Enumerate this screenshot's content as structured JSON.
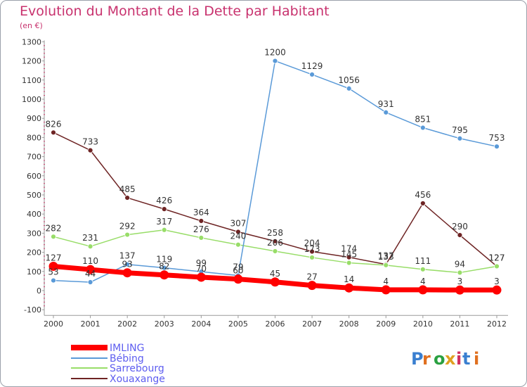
{
  "title": "Evolution du Montant de la Dette par Habitant",
  "subtitle": "(en €)",
  "logo_text": "Proxiti",
  "chart_data": {
    "type": "line",
    "title": "Evolution du Montant de la Dette par Habitant",
    "subtitle": "(en €)",
    "xlabel": "",
    "ylabel": "",
    "x": [
      "2000",
      "2001",
      "2002",
      "2003",
      "2004",
      "2005",
      "2006",
      "2007",
      "2008",
      "2009",
      "2010",
      "2011",
      "2012"
    ],
    "ylim": [
      -100,
      1300
    ],
    "yticks": [
      -100,
      0,
      100,
      200,
      300,
      400,
      500,
      600,
      700,
      800,
      900,
      1000,
      1100,
      1200,
      1300
    ],
    "grid": false,
    "legend_position": "bottom-left",
    "series": [
      {
        "name": "Xouaxange",
        "color": "#6e2424",
        "values": [
          826,
          733,
          485,
          426,
          364,
          307,
          258,
          204,
          174,
          137,
          456,
          290,
          127
        ]
      },
      {
        "name": "Sarrebourg",
        "color": "#98dd68",
        "values": [
          282,
          231,
          292,
          317,
          276,
          240,
          206,
          173,
          145,
          133,
          111,
          94,
          127
        ]
      },
      {
        "name": "Bébing",
        "color": "#5a9ad8",
        "values": [
          53,
          44,
          137,
          119,
          99,
          79,
          1200,
          1129,
          1056,
          931,
          851,
          795,
          753
        ]
      },
      {
        "name": "IMLING",
        "color": "#ff0000",
        "values": [
          127,
          110,
          93,
          82,
          70,
          60,
          45,
          27,
          14,
          4,
          4,
          3,
          3
        ]
      }
    ],
    "legend_order": [
      "IMLING",
      "Bébing",
      "Sarrebourg",
      "Xouaxange"
    ],
    "label_offsets": {
      "Xouaxange": [
        0,
        0,
        0,
        0,
        0,
        0,
        0,
        0,
        0,
        0,
        0,
        0,
        0
      ],
      "Sarrebourg": [
        0,
        0,
        0,
        0,
        0,
        0,
        0,
        0,
        0,
        0,
        0,
        0,
        0
      ],
      "Bébing": [
        0,
        0,
        0,
        0,
        0,
        0,
        0,
        0,
        0,
        0,
        0,
        0,
        0
      ],
      "IMLING": [
        0,
        0,
        0,
        0,
        0,
        0,
        0,
        0,
        0,
        0,
        0,
        0,
        0
      ]
    }
  }
}
